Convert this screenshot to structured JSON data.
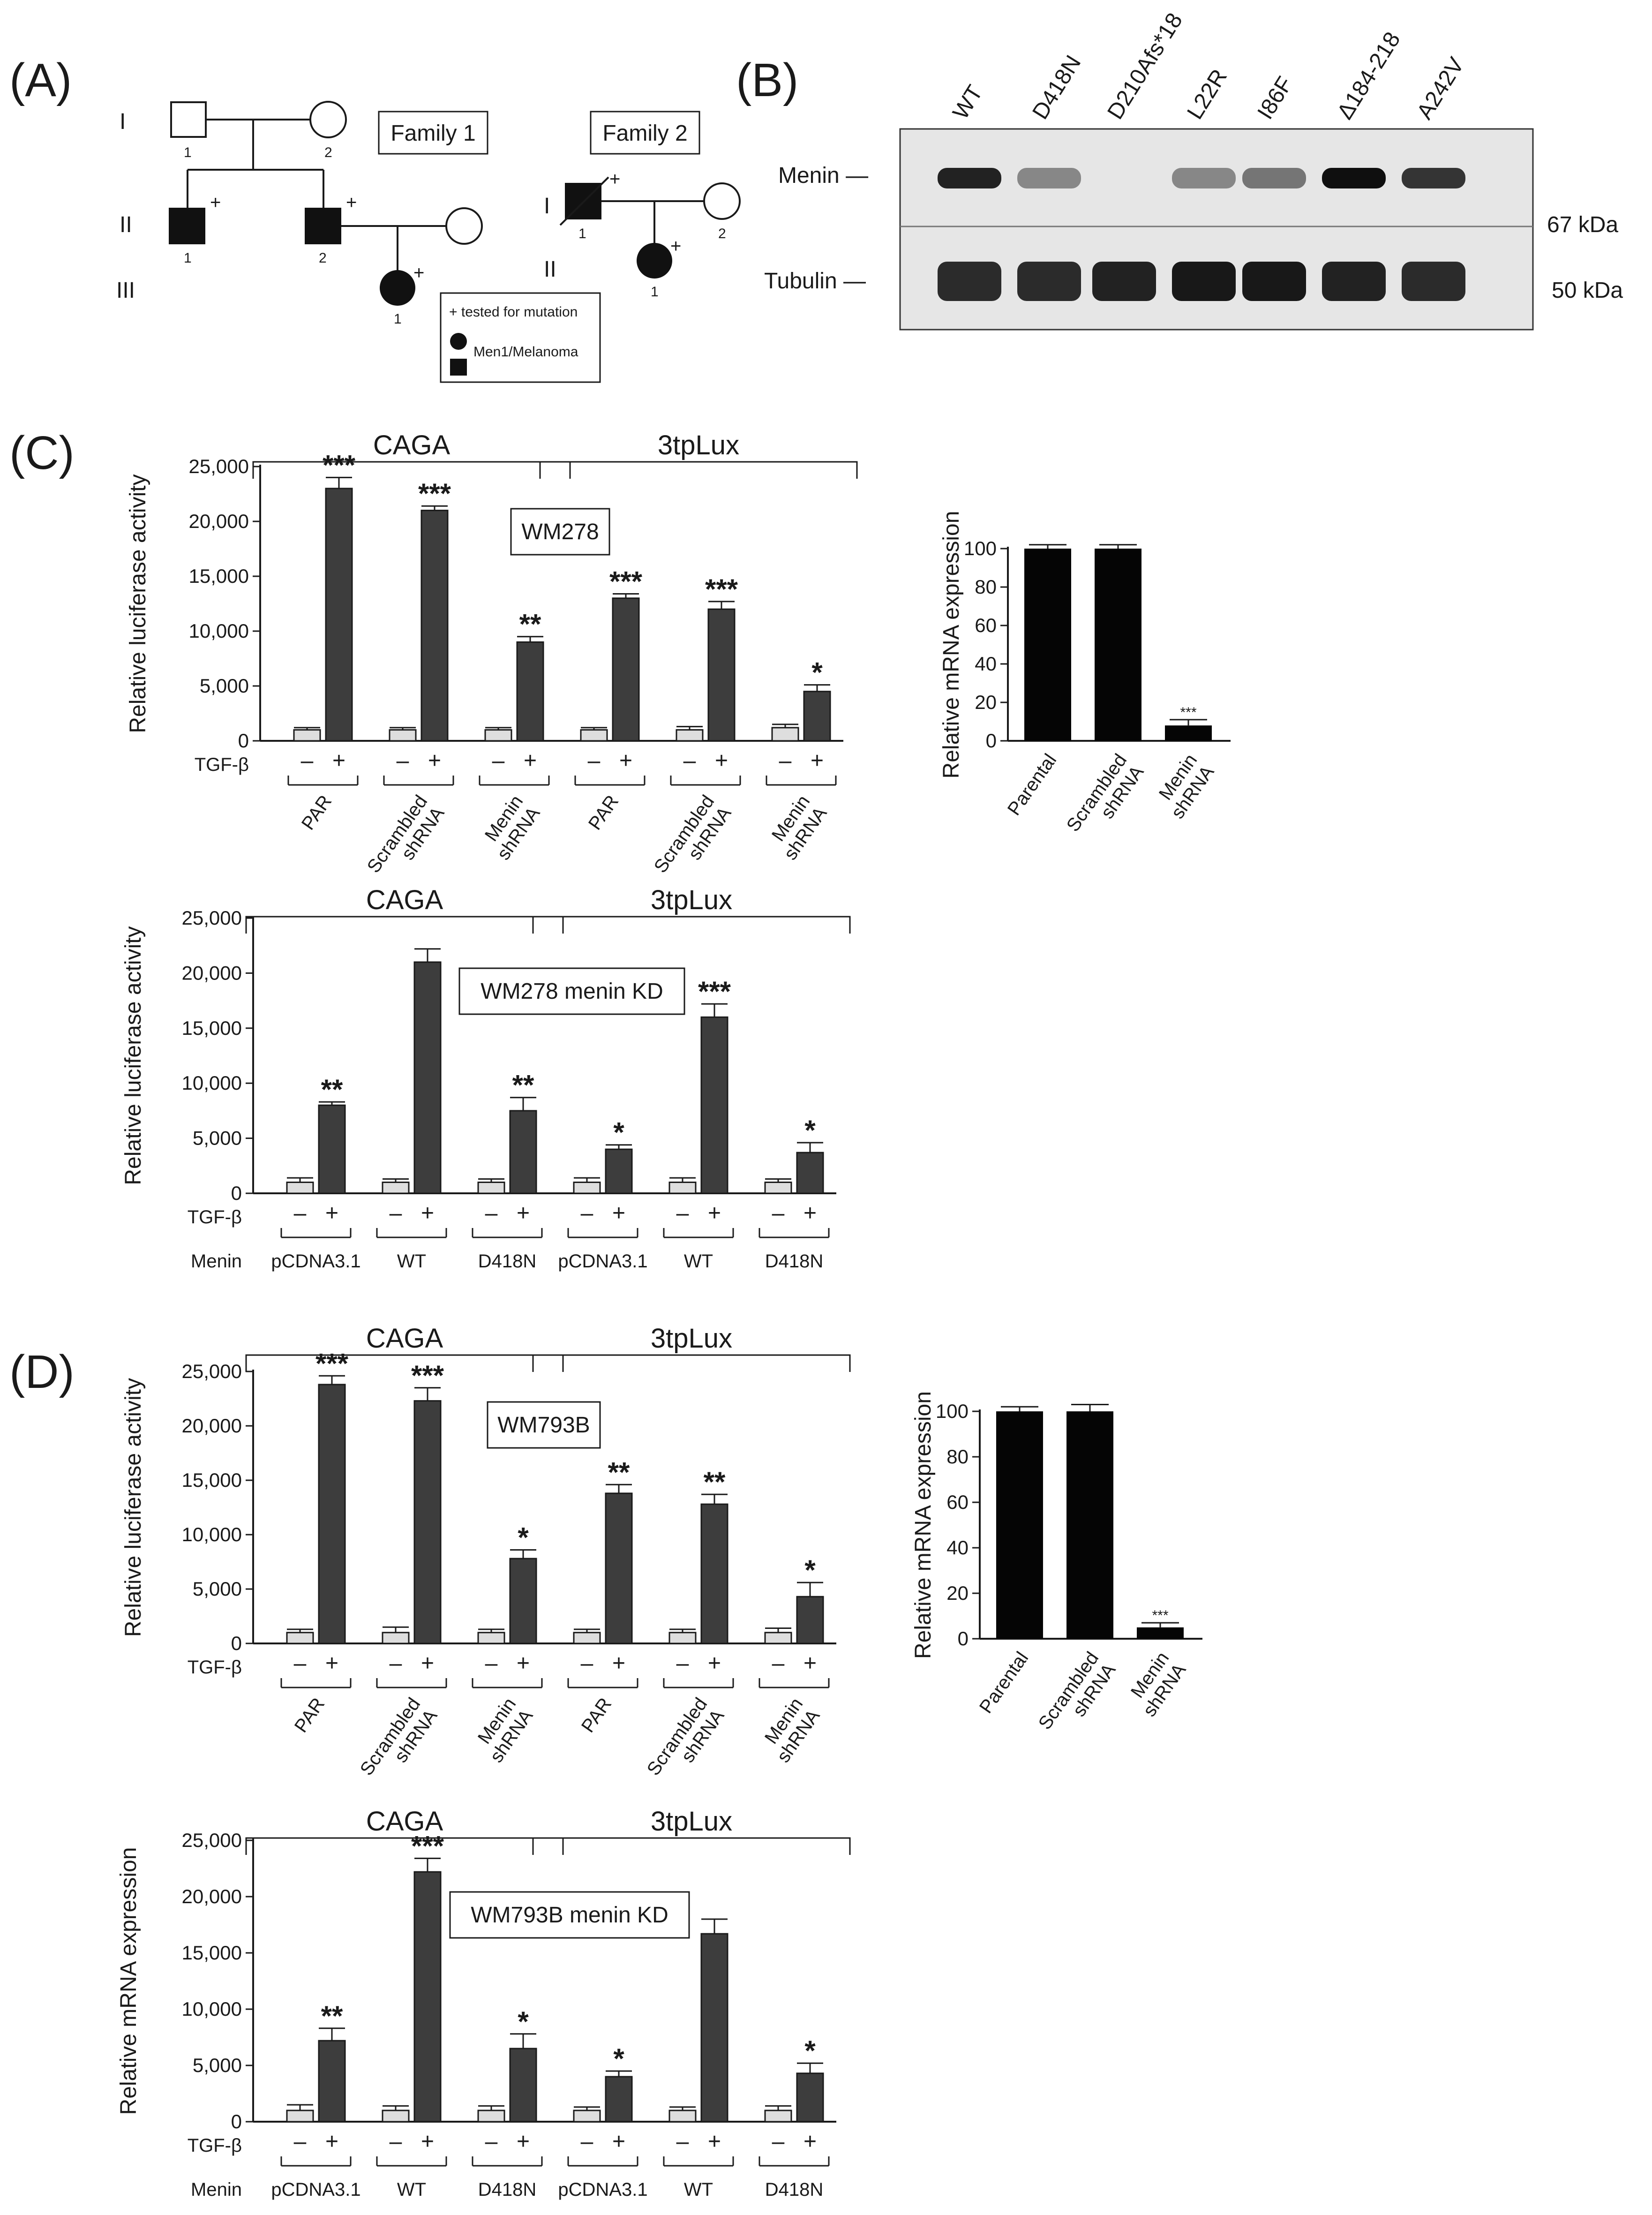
{
  "panel_a": {
    "label": "(A)",
    "family1": "Family 1",
    "family2": "Family 2",
    "gen": [
      "I",
      "II",
      "III"
    ],
    "gen2": [
      "I",
      "II"
    ],
    "num": [
      "1",
      "2"
    ],
    "plus": "+",
    "legend": {
      "tested": "+ tested for mutation",
      "disease": "Men1/Melanoma"
    }
  },
  "panel_b": {
    "label": "(B)",
    "lanes": [
      "WT",
      "D418N",
      "D210Afs*18",
      "L22R",
      "I86F",
      "Δ184-218",
      "A242V"
    ],
    "rows": [
      {
        "name": "Menin —",
        "size": "67 kDa",
        "intensities": [
          0.9,
          0.35,
          0.0,
          0.35,
          0.45,
          1.0,
          0.8
        ]
      },
      {
        "name": "Tubulin —",
        "size": "50 kDa",
        "intensities": [
          0.85,
          0.85,
          0.9,
          0.95,
          0.95,
          0.9,
          0.85
        ]
      }
    ]
  },
  "panel_c": {
    "label": "(C)"
  },
  "panel_d": {
    "label": "(D)"
  },
  "chart_data": [
    {
      "type": "bar",
      "ylabel": "Relative luciferase activity",
      "ylim": [
        0,
        25000
      ],
      "yticks": [
        "0",
        "5,000",
        "10,000",
        "15,000",
        "20,000",
        "25,000"
      ],
      "box_label": "WM278",
      "groups": [
        "CAGA",
        "3tpLux"
      ],
      "treatment_label": "TGF-β",
      "treatment_signs": [
        "–",
        "+"
      ],
      "subgroups": [
        "PAR",
        "Scrambled shRNA",
        "Menin shRNA"
      ],
      "values": [
        1000,
        23000,
        1000,
        21000,
        1000,
        9000,
        1000,
        13000,
        1000,
        12000,
        1200,
        4500
      ],
      "errors": [
        200,
        1000,
        200,
        400,
        200,
        500,
        200,
        400,
        300,
        700,
        300,
        600
      ],
      "stars": [
        "",
        "***",
        "",
        "***",
        "",
        "**",
        "",
        "***",
        "",
        "***",
        "",
        "*"
      ]
    },
    {
      "type": "bar",
      "ylabel": "Relative mRNA expression",
      "ylim": [
        0,
        100
      ],
      "yticks": [
        "0",
        "20",
        "40",
        "60",
        "80",
        "100"
      ],
      "categories": [
        "Parental",
        "Scrambled shRNA",
        "Menin shRNA"
      ],
      "values": [
        100,
        100,
        8
      ],
      "errors": [
        2,
        2,
        3
      ],
      "stars": [
        "",
        "",
        "***"
      ]
    },
    {
      "type": "bar",
      "ylabel": "Relative luciferase activity",
      "ylim": [
        0,
        25000
      ],
      "yticks": [
        "0",
        "5,000",
        "10,000",
        "15,000",
        "20,000",
        "25,000"
      ],
      "box_label": "WM278 menin KD",
      "groups": [
        "CAGA",
        "3tpLux"
      ],
      "treatment_label": "TGF-β",
      "treatment_signs": [
        "–",
        "+"
      ],
      "factor_label": "Menin",
      "subgroups": [
        "pCDNA3.1",
        "WT",
        "D418N"
      ],
      "values": [
        1000,
        8000,
        1000,
        21000,
        1000,
        7500,
        1000,
        4000,
        1000,
        16000,
        1000,
        3700
      ],
      "errors": [
        400,
        300,
        300,
        1200,
        300,
        1200,
        400,
        400,
        400,
        1200,
        300,
        900
      ],
      "stars": [
        "",
        "**",
        "",
        "",
        "",
        "**",
        "",
        "*",
        "",
        "***",
        "",
        "*"
      ]
    },
    {
      "type": "bar",
      "ylabel": "Relative luciferase activity",
      "ylim": [
        0,
        25000
      ],
      "yticks": [
        "0",
        "5,000",
        "10,000",
        "15,000",
        "20,000",
        "25,000"
      ],
      "box_label": "WM793B",
      "groups": [
        "CAGA",
        "3tpLux"
      ],
      "treatment_label": "TGF-β",
      "treatment_signs": [
        "–",
        "+"
      ],
      "subgroups": [
        "PAR",
        "Scrambled shRNA",
        "Menin shRNA"
      ],
      "values": [
        1000,
        23800,
        1000,
        22300,
        1000,
        7800,
        1000,
        13800,
        1000,
        12800,
        1000,
        4300
      ],
      "errors": [
        300,
        800,
        500,
        1200,
        300,
        800,
        300,
        800,
        300,
        900,
        400,
        1300
      ],
      "stars": [
        "",
        "***",
        "",
        "***",
        "",
        "*",
        "",
        "**",
        "",
        "**",
        "",
        "*"
      ]
    },
    {
      "type": "bar",
      "ylabel": "Relative mRNA expression",
      "ylim": [
        0,
        100
      ],
      "yticks": [
        "0",
        "20",
        "40",
        "60",
        "80",
        "100"
      ],
      "categories": [
        "Parental",
        "Scrambled shRNA",
        "Menin shRNA"
      ],
      "values": [
        100,
        100,
        5
      ],
      "errors": [
        2,
        3,
        2
      ],
      "stars": [
        "",
        "",
        "***"
      ]
    },
    {
      "type": "bar",
      "ylabel": "Relative mRNA expression",
      "ylim": [
        0,
        25000
      ],
      "yticks": [
        "0",
        "5,000",
        "10,000",
        "15,000",
        "20,000",
        "25,000"
      ],
      "box_label": "WM793B menin KD",
      "groups": [
        "CAGA",
        "3tpLux"
      ],
      "treatment_label": "TGF-β",
      "treatment_signs": [
        "–",
        "+"
      ],
      "factor_label": "Menin",
      "subgroups": [
        "pCDNA3.1",
        "WT",
        "D418N"
      ],
      "values": [
        1000,
        7200,
        1000,
        22200,
        1000,
        6500,
        1000,
        4000,
        1000,
        16700,
        1000,
        4300
      ],
      "errors": [
        500,
        1100,
        400,
        1200,
        400,
        1300,
        300,
        500,
        300,
        1300,
        400,
        900
      ],
      "stars": [
        "",
        "**",
        "",
        "***",
        "",
        "*",
        "",
        "*",
        "",
        "",
        "",
        "*"
      ]
    }
  ]
}
